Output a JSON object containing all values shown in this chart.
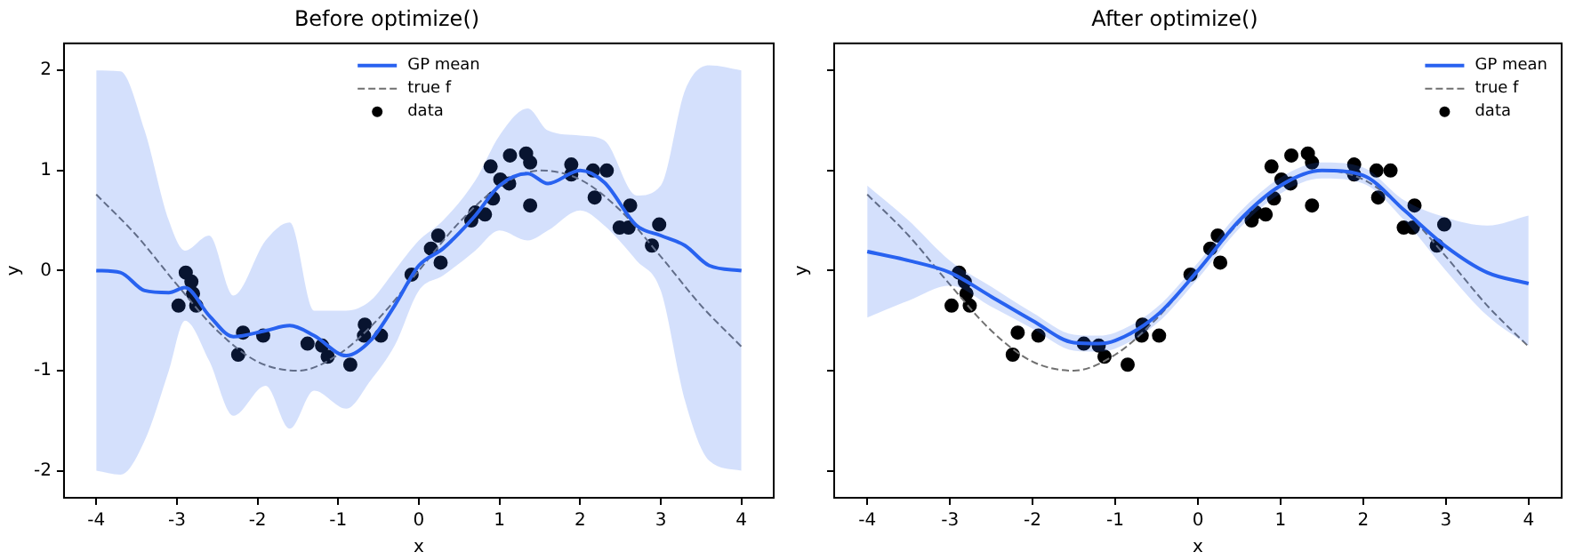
{
  "chart_data": [
    {
      "type": "line",
      "title": "Before optimize()",
      "xlabel": "x",
      "ylabel": "y",
      "xlim": [
        -4.4,
        4.4
      ],
      "xticks": [
        -4,
        -3,
        -2,
        -1,
        0,
        1,
        2,
        3,
        4
      ],
      "ylim": [
        -2.27,
        2.27
      ],
      "yticks": [
        -2,
        -1,
        0,
        1,
        2
      ],
      "grid": false,
      "legend": "top",
      "series": [
        {
          "name": "GP mean",
          "type": "line",
          "color": "#2962f0",
          "line_style": "solid",
          "x": [
            -4,
            -3.7,
            -3.4,
            -3.1,
            -2.9,
            -2.6,
            -2.3,
            -1.9,
            -1.6,
            -1.3,
            -0.9,
            -0.6,
            -0.3,
            0,
            0.3,
            0.7,
            1.0,
            1.35,
            1.6,
            2.0,
            2.3,
            2.7,
            3.0,
            3.3,
            3.6,
            4.0
          ],
          "values": [
            0,
            -0.02,
            -0.2,
            -0.22,
            -0.17,
            -0.45,
            -0.66,
            -0.6,
            -0.55,
            -0.65,
            -0.85,
            -0.7,
            -0.35,
            0.05,
            0.22,
            0.55,
            0.85,
            0.97,
            0.87,
            1.0,
            0.88,
            0.45,
            0.35,
            0.25,
            0.05,
            0
          ],
          "upper": [
            2.0,
            1.99,
            1.4,
            0.5,
            0.2,
            0.35,
            -0.25,
            0.3,
            0.48,
            -0.4,
            -0.4,
            -0.3,
            0.0,
            0.3,
            0.5,
            0.9,
            1.35,
            1.62,
            1.4,
            1.35,
            1.3,
            0.75,
            0.85,
            1.8,
            2.05,
            2.0
          ],
          "lower": [
            -2.0,
            -2.04,
            -1.7,
            -1.0,
            -0.5,
            -0.9,
            -1.45,
            -1.15,
            -1.58,
            -1.2,
            -1.38,
            -1.1,
            -0.75,
            -0.2,
            -0.05,
            0.2,
            0.4,
            0.3,
            0.4,
            0.6,
            0.45,
            0.1,
            -0.2,
            -1.3,
            -1.9,
            -2.0
          ]
        },
        {
          "name": "true f",
          "type": "line",
          "color": "#707070",
          "line_style": "dashed",
          "x": [
            -4,
            -3.5,
            -3,
            -2.5,
            -2,
            -1.5,
            -1,
            -0.5,
            0,
            0.5,
            1,
            1.5,
            2,
            2.5,
            3,
            3.5,
            4
          ],
          "values": [
            0.76,
            0.35,
            -0.14,
            -0.6,
            -0.91,
            -1.0,
            -0.84,
            -0.48,
            0,
            0.48,
            0.84,
            1.0,
            0.91,
            0.6,
            0.14,
            -0.35,
            -0.76
          ]
        },
        {
          "name": "data",
          "type": "scatter",
          "color": "#000000",
          "marker": "circle",
          "x": [
            -2.98,
            -2.89,
            -2.82,
            -2.8,
            -2.76,
            -2.24,
            -2.18,
            -1.93,
            -1.38,
            -1.2,
            -1.13,
            -0.85,
            -0.68,
            -0.67,
            -0.47,
            -0.09,
            0.15,
            0.24,
            0.27,
            0.65,
            0.7,
            0.82,
            0.89,
            0.92,
            1.01,
            1.12,
            1.13,
            1.33,
            1.38,
            1.38,
            1.89,
            1.89,
            2.16,
            2.18,
            2.33,
            2.49,
            2.6,
            2.62,
            2.89,
            2.98
          ],
          "values": [
            -0.35,
            -0.02,
            -0.11,
            -0.23,
            -0.35,
            -0.84,
            -0.62,
            -0.65,
            -0.73,
            -0.75,
            -0.86,
            -0.94,
            -0.65,
            -0.54,
            -0.65,
            -0.04,
            0.22,
            0.35,
            0.08,
            0.5,
            0.58,
            0.56,
            1.04,
            0.72,
            0.91,
            0.87,
            1.15,
            1.17,
            1.08,
            0.65,
            1.06,
            0.96,
            1.0,
            0.73,
            1.0,
            0.43,
            0.43,
            0.65,
            0.25,
            0.46
          ]
        }
      ]
    },
    {
      "type": "line",
      "title": "After optimize()",
      "xlabel": "x",
      "ylabel": "y",
      "xlim": [
        -4.4,
        4.4
      ],
      "xticks": [
        -4,
        -3,
        -2,
        -1,
        0,
        1,
        2,
        3,
        4
      ],
      "ylim": [
        -2.27,
        2.27
      ],
      "yticks": [
        -2,
        -1,
        0,
        1,
        2
      ],
      "tick_labels": "x",
      "grid": false,
      "legend": "top right",
      "series": [
        {
          "name": "GP mean",
          "type": "line",
          "color": "#2962f0",
          "line_style": "solid",
          "x": [
            -4,
            -3.5,
            -3,
            -2.5,
            -2,
            -1.5,
            -1.2,
            -1,
            -0.5,
            0,
            0.5,
            1,
            1.5,
            2,
            2.5,
            3,
            3.5,
            4
          ],
          "values": [
            0.19,
            0.1,
            -0.02,
            -0.26,
            -0.5,
            -0.72,
            -0.73,
            -0.7,
            -0.45,
            0.0,
            0.5,
            0.85,
            1.0,
            0.95,
            0.6,
            0.24,
            -0.02,
            -0.13
          ],
          "upper": [
            0.85,
            0.5,
            0.1,
            -0.16,
            -0.42,
            -0.64,
            -0.65,
            -0.62,
            -0.37,
            0.08,
            0.58,
            0.93,
            1.08,
            1.03,
            0.7,
            0.53,
            0.45,
            0.55
          ],
          "lower": [
            -0.47,
            -0.3,
            -0.15,
            -0.36,
            -0.58,
            -0.8,
            -0.81,
            -0.78,
            -0.53,
            -0.08,
            0.42,
            0.77,
            0.92,
            0.87,
            0.5,
            0.0,
            -0.45,
            -0.75
          ]
        },
        {
          "name": "true f",
          "type": "line",
          "color": "#707070",
          "line_style": "dashed",
          "x": [
            -4,
            -3.5,
            -3,
            -2.5,
            -2,
            -1.5,
            -1,
            -0.5,
            0,
            0.5,
            1,
            1.5,
            2,
            2.5,
            3,
            3.5,
            4
          ],
          "values": [
            0.76,
            0.35,
            -0.14,
            -0.6,
            -0.91,
            -1.0,
            -0.84,
            -0.48,
            0,
            0.48,
            0.84,
            1.0,
            0.91,
            0.6,
            0.14,
            -0.35,
            -0.76
          ]
        },
        {
          "name": "data",
          "type": "scatter",
          "color": "#000000",
          "marker": "circle",
          "x": [
            -2.98,
            -2.89,
            -2.82,
            -2.8,
            -2.76,
            -2.24,
            -2.18,
            -1.93,
            -1.38,
            -1.2,
            -1.13,
            -0.85,
            -0.68,
            -0.67,
            -0.47,
            -0.09,
            0.15,
            0.24,
            0.27,
            0.65,
            0.7,
            0.82,
            0.89,
            0.92,
            1.01,
            1.12,
            1.13,
            1.33,
            1.38,
            1.38,
            1.89,
            1.89,
            2.16,
            2.18,
            2.33,
            2.49,
            2.6,
            2.62,
            2.89,
            2.98
          ],
          "values": [
            -0.35,
            -0.02,
            -0.11,
            -0.23,
            -0.35,
            -0.84,
            -0.62,
            -0.65,
            -0.73,
            -0.75,
            -0.86,
            -0.94,
            -0.65,
            -0.54,
            -0.65,
            -0.04,
            0.22,
            0.35,
            0.08,
            0.5,
            0.58,
            0.56,
            1.04,
            0.72,
            0.91,
            0.87,
            1.15,
            1.17,
            1.08,
            0.65,
            1.06,
            0.96,
            1.0,
            0.73,
            1.0,
            0.43,
            0.43,
            0.65,
            0.25,
            0.46
          ]
        }
      ]
    }
  ]
}
